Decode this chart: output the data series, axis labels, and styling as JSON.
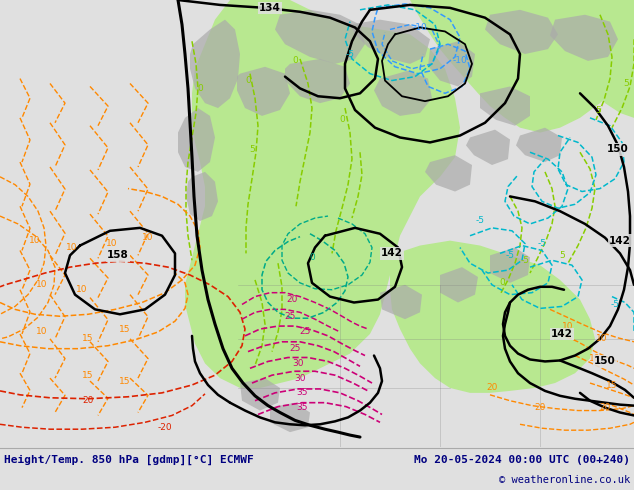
{
  "title_left": "Height/Temp. 850 hPa [gdmp][°C] ECMWF",
  "title_right": "Mo 20-05-2024 00:00 UTC (00+240)",
  "copyright": "© weatheronline.co.uk",
  "bg_color": "#e0e0e0",
  "green_fill": "#b8e890",
  "figsize": [
    6.34,
    4.9
  ],
  "dpi": 100
}
